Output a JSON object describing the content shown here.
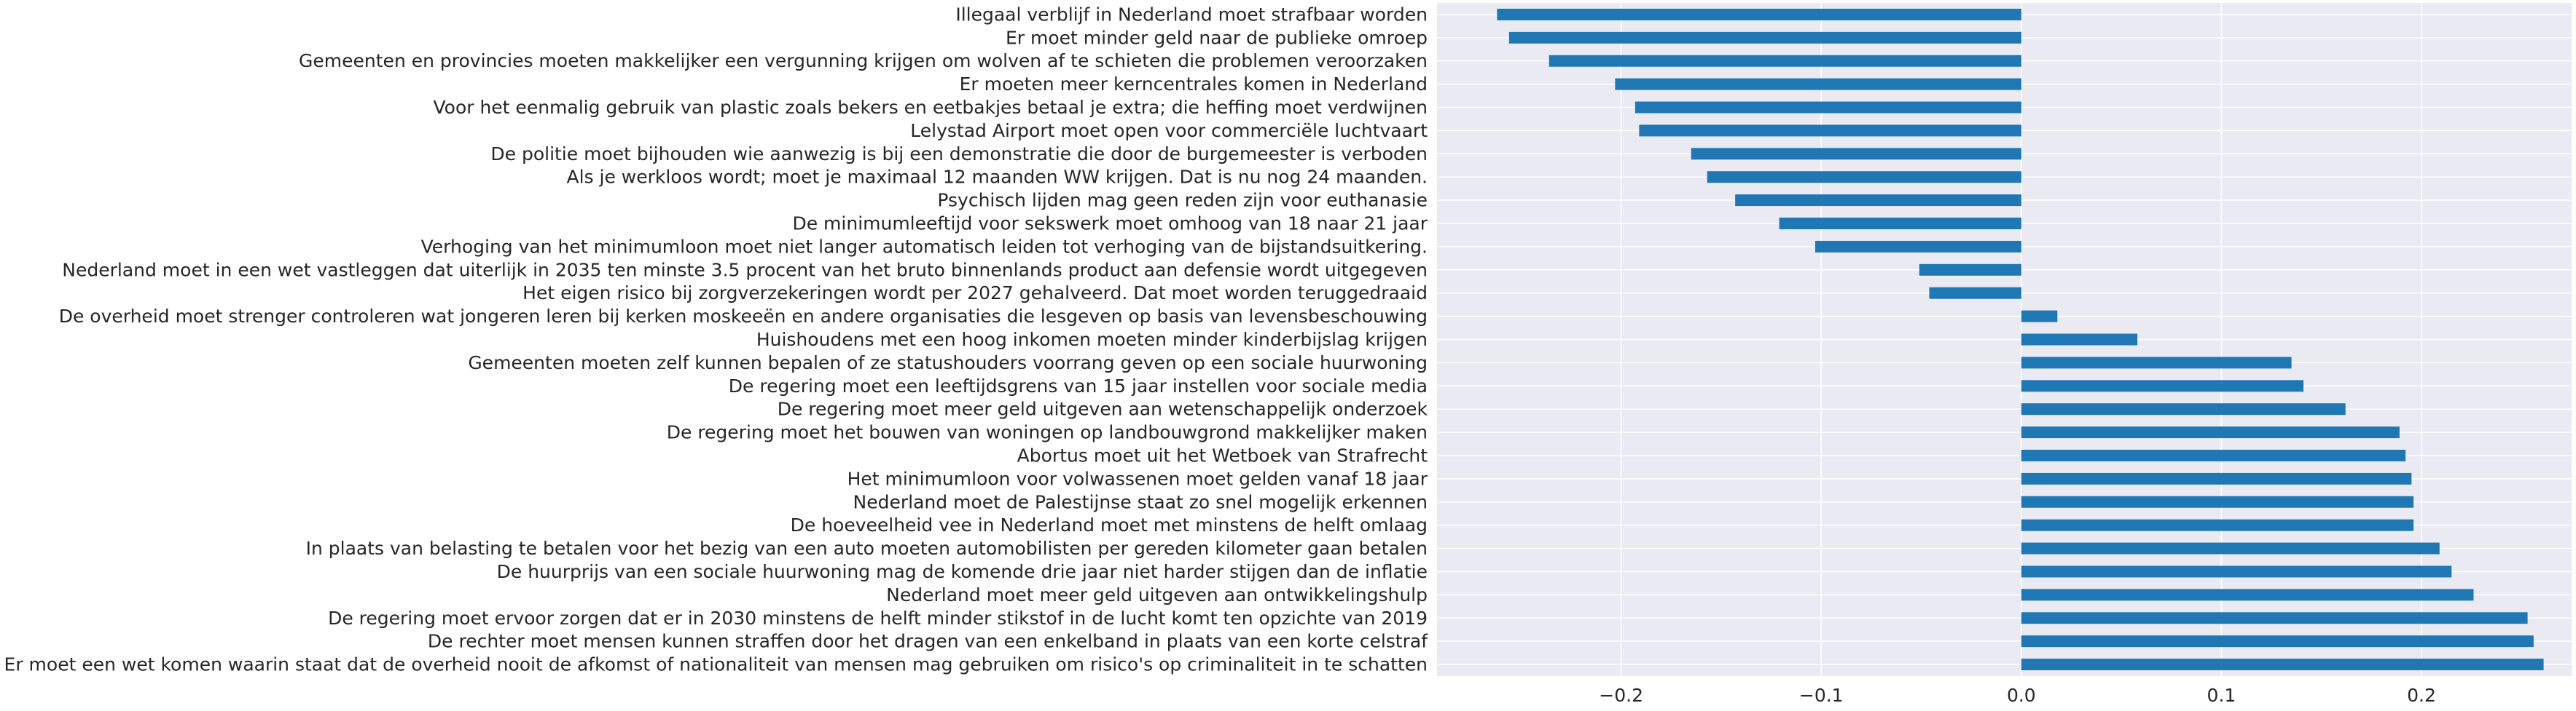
{
  "chart_data": {
    "type": "bar",
    "orientation": "horizontal",
    "title": "",
    "xlabel": "",
    "ylabel": "",
    "xlim": [
      -0.292,
      0.275
    ],
    "xticks": [
      -0.2,
      -0.1,
      0.0,
      0.1,
      0.2
    ],
    "xtick_labels": [
      "−0.2",
      "−0.1",
      "0.0",
      "0.1",
      "0.2"
    ],
    "grid": true,
    "bar_color": "#1f77b4",
    "background_color": "#eaeaf2",
    "grid_color": "#ffffff",
    "categories": [
      "Illegaal verblijf in Nederland moet strafbaar worden",
      "Er moet minder geld naar de publieke omroep",
      "Gemeenten en provincies moeten makkelijker een vergunning krijgen om wolven af te schieten die problemen veroorzaken",
      "Er moeten meer kerncentrales komen in Nederland",
      "Voor het eenmalig gebruik van plastic zoals bekers en eetbakjes betaal je extra; die heffing moet verdwijnen",
      "Lelystad Airport moet open voor commerciële luchtvaart",
      "De politie moet bijhouden wie aanwezig is bij een demonstratie die door de burgemeester is verboden",
      "Als je werkloos wordt; moet je maximaal 12 maanden WW krijgen. Dat is nu nog 24 maanden.",
      "Psychisch lijden mag geen reden zijn voor euthanasie",
      "De minimumleeftijd voor sekswerk moet omhoog van 18 naar 21 jaar",
      "Verhoging van het minimumloon moet niet langer automatisch leiden tot verhoging van de bijstandsuitkering.",
      "Nederland moet in een wet vastleggen dat uiterlijk in 2035 ten minste 3.5 procent van het bruto binnenlands product aan defensie wordt uitgegeven",
      "Het eigen risico bij zorgverzekeringen wordt per 2027 gehalveerd. Dat moet worden teruggedraaid",
      "De overheid moet strenger controleren wat jongeren leren bij kerken moskeeën en andere organisaties die lesgeven op basis van levensbeschouwing",
      "Huishoudens met een hoog inkomen moeten minder kinderbijslag krijgen",
      "Gemeenten moeten zelf kunnen bepalen of ze statushouders voorrang geven op een sociale huurwoning",
      "De regering moet een leeftijdsgrens van 15 jaar instellen voor sociale media",
      "De regering moet meer geld uitgeven aan wetenschappelijk onderzoek",
      "De regering moet het bouwen van woningen op landbouwgrond makkelijker maken",
      "Abortus moet uit het Wetboek van Strafrecht",
      "Het minimumloon voor volwassenen moet gelden vanaf 18 jaar",
      "Nederland moet de Palestijnse staat zo snel mogelijk erkennen",
      "De hoeveelheid vee in Nederland moet met minstens de helft omlaag",
      "In plaats van belasting te betalen voor het bezig van een auto moeten automobilisten per gereden kilometer gaan betalen",
      "De huurprijs van een sociale huurwoning mag de komende drie jaar niet harder stijgen dan de inflatie",
      "Nederland moet meer geld uitgeven aan ontwikkelingshulp",
      "De regering moet ervoor zorgen dat er in 2030 minstens de helft minder stikstof in de lucht komt ten opzichte van 2019",
      "De rechter moet mensen kunnen straffen door het dragen van een enkelband in plaats van een korte celstraf",
      "Er moet een wet komen waarin staat dat de overheid nooit de afkomst of nationaliteit van mensen mag gebruiken om risico's op criminaliteit in te schatten"
    ],
    "values": [
      -0.262,
      -0.256,
      -0.236,
      -0.203,
      -0.193,
      -0.191,
      -0.165,
      -0.157,
      -0.143,
      -0.121,
      -0.103,
      -0.051,
      -0.046,
      0.018,
      0.058,
      0.135,
      0.141,
      0.162,
      0.189,
      0.192,
      0.195,
      0.196,
      0.196,
      0.209,
      0.215,
      0.226,
      0.253,
      0.256,
      0.261
    ]
  }
}
